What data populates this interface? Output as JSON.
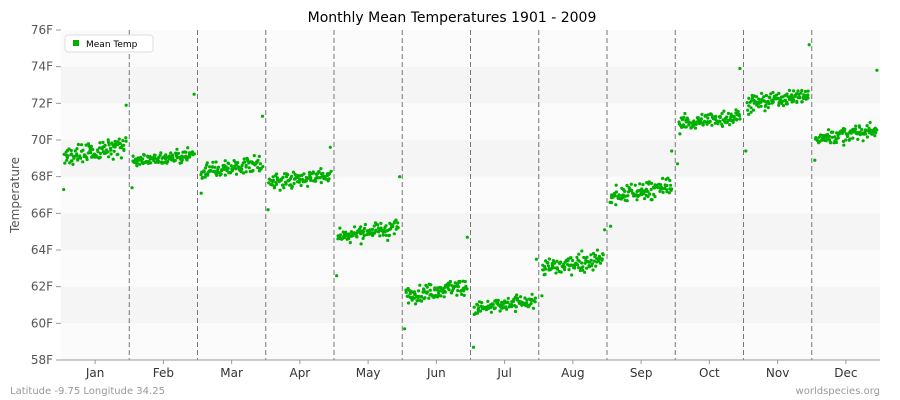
{
  "chart_data": {
    "type": "scatter",
    "title": "Monthly Mean Temperatures 1901 - 2009",
    "xlabel": "",
    "ylabel": "Temperature",
    "ylim": [
      58,
      76
    ],
    "yticks": [
      "58F",
      "60F",
      "62F",
      "64F",
      "66F",
      "68F",
      "70F",
      "72F",
      "74F",
      "76F"
    ],
    "categories": [
      "Jan",
      "Feb",
      "Mar",
      "Apr",
      "May",
      "Jun",
      "Jul",
      "Aug",
      "Sep",
      "Oct",
      "Nov",
      "Dec"
    ],
    "grid": "alternating horizontal bands",
    "legend_position": "top-left",
    "series": [
      {
        "name": "Mean Temp",
        "color": "#00b000",
        "points_per_month": 109,
        "monthly_summary": [
          {
            "month": "Jan",
            "min": 67.3,
            "typical_low": 68.8,
            "typical_high": 70.0,
            "max": 71.9
          },
          {
            "month": "Feb",
            "min": 67.4,
            "typical_low": 68.6,
            "typical_high": 69.4,
            "max": 72.5
          },
          {
            "month": "Mar",
            "min": 67.1,
            "typical_low": 68.0,
            "typical_high": 69.0,
            "max": 71.3
          },
          {
            "month": "Apr",
            "min": 66.2,
            "typical_low": 67.4,
            "typical_high": 68.4,
            "max": 69.6
          },
          {
            "month": "May",
            "min": 62.6,
            "typical_low": 64.5,
            "typical_high": 65.5,
            "max": 68.0
          },
          {
            "month": "Jun",
            "min": 59.7,
            "typical_low": 61.3,
            "typical_high": 62.3,
            "max": 64.7
          },
          {
            "month": "Jul",
            "min": 58.7,
            "typical_low": 60.5,
            "typical_high": 61.5,
            "max": 63.5
          },
          {
            "month": "Aug",
            "min": 61.5,
            "typical_low": 62.7,
            "typical_high": 63.8,
            "max": 65.1
          },
          {
            "month": "Sep",
            "min": 65.3,
            "typical_low": 66.6,
            "typical_high": 67.8,
            "max": 69.4
          },
          {
            "month": "Oct",
            "min": 68.7,
            "typical_low": 70.6,
            "typical_high": 71.6,
            "max": 73.9
          },
          {
            "month": "Nov",
            "min": 69.4,
            "typical_low": 71.7,
            "typical_high": 72.7,
            "max": 75.2
          },
          {
            "month": "Dec",
            "min": 68.9,
            "typical_low": 69.8,
            "typical_high": 70.8,
            "max": 73.8
          }
        ]
      }
    ]
  },
  "legend": {
    "label": "Mean Temp",
    "color": "#00b000"
  },
  "footer": {
    "left": "Latitude -9.75 Longitude 34.25",
    "right": "worldspecies.org"
  },
  "colors": {
    "band_light": "#f5f5f5",
    "band_white": "#fbfbfb",
    "separator": "#777777",
    "marker": "#00b000"
  }
}
